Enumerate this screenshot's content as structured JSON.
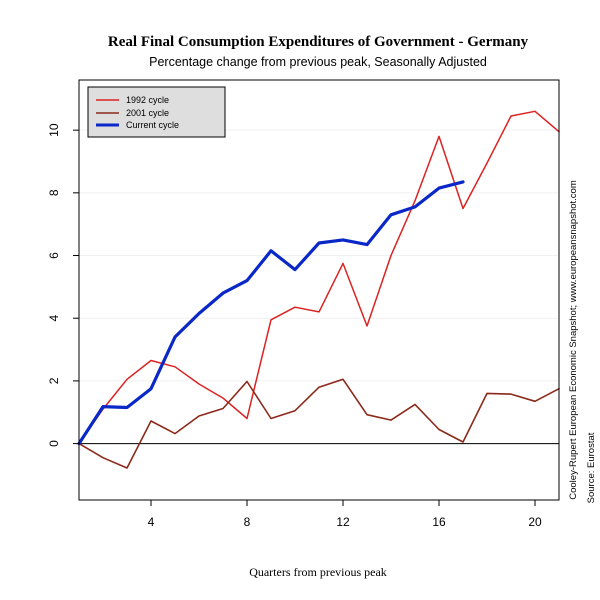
{
  "chart_data": {
    "type": "line",
    "title": "Real Final Consumption Expenditures of Government - Germany",
    "subtitle": "Percentage change from previous peak, Seasonally Adjusted",
    "xlabel": "Quarters from previous peak",
    "ylabel": "",
    "xlim": [
      1,
      21
    ],
    "ylim": [
      -1.8,
      11.6
    ],
    "xticks": [
      4,
      8,
      12,
      16,
      20
    ],
    "yticks": [
      0,
      2,
      4,
      6,
      8,
      10
    ],
    "grid": true,
    "zero_line": true,
    "legend_position": "top-left",
    "source_notes": [
      "Cooley-Rupert European Economic Snapshot; www.europeansnapshot.com",
      "Source: Eurostat"
    ],
    "series": [
      {
        "name": "1992 cycle",
        "color": "#dd2222",
        "x": [
          1,
          2,
          3,
          4,
          5,
          6,
          7,
          8,
          9,
          10,
          11,
          12,
          13,
          14,
          15,
          16,
          17,
          18,
          19,
          20,
          21
        ],
        "y": [
          0,
          1.1,
          2.05,
          2.65,
          2.45,
          1.9,
          1.45,
          0.8,
          3.95,
          4.35,
          4.2,
          5.75,
          3.75,
          6.0,
          7.75,
          9.8,
          7.5,
          8.95,
          10.45,
          10.6,
          9.95
        ]
      },
      {
        "name": "2001 cycle",
        "color": "#8b2a1a",
        "x": [
          1,
          2,
          3,
          4,
          5,
          6,
          7,
          8,
          9,
          10,
          11,
          12,
          13,
          14,
          15,
          16,
          17,
          18,
          19,
          20,
          21
        ],
        "y": [
          0,
          -0.45,
          -0.78,
          0.72,
          0.32,
          0.88,
          1.12,
          1.98,
          0.8,
          1.05,
          1.8,
          2.05,
          0.92,
          0.75,
          1.25,
          0.45,
          0.05,
          1.6,
          1.58,
          1.35,
          1.75
        ]
      },
      {
        "name": "Current cycle",
        "color": "#0a28c8",
        "x": [
          1,
          2,
          3,
          4,
          5,
          6,
          7,
          8,
          9,
          10,
          11,
          12,
          13,
          14,
          15,
          16,
          17
        ],
        "y": [
          0,
          1.18,
          1.15,
          1.75,
          3.4,
          4.15,
          4.8,
          5.2,
          6.15,
          5.55,
          6.4,
          6.5,
          6.35,
          7.3,
          7.55,
          8.15,
          8.35
        ]
      }
    ]
  }
}
